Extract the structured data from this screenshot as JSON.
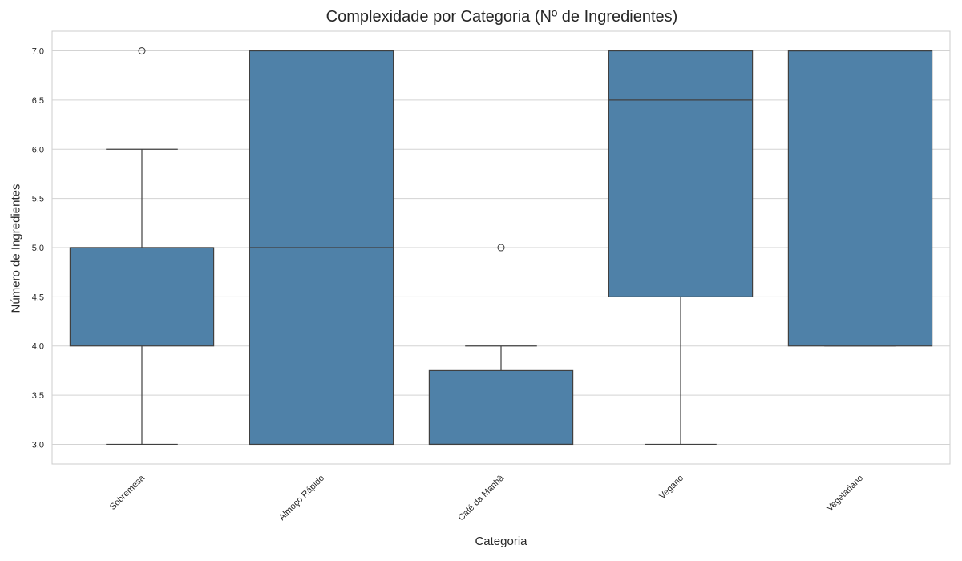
{
  "chart_data": {
    "type": "box",
    "title": "Complexidade por Categoria (Nº de Ingredientes)",
    "xlabel": "Categoria",
    "ylabel": "Número de Ingredientes",
    "ylim": [
      2.8,
      7.2
    ],
    "yticks": [
      "3.0",
      "3.5",
      "4.0",
      "4.5",
      "5.0",
      "5.5",
      "6.0",
      "6.5",
      "7.0"
    ],
    "grid": true,
    "box_color": "#4f81a8",
    "line_color": "#404040",
    "categories": [
      "Sobremesa",
      "Almoço Rápido",
      "Café da Manhã",
      "Vegano",
      "Vegetariano"
    ],
    "boxes": [
      {
        "category": "Sobremesa",
        "whisker_low": 3.0,
        "q1": 4.0,
        "median": 5.0,
        "q3": 5.0,
        "whisker_high": 6.0,
        "outliers": [
          7.0
        ]
      },
      {
        "category": "Almoço Rápido",
        "whisker_low": 3.0,
        "q1": 3.0,
        "median": 5.0,
        "q3": 7.0,
        "whisker_high": 7.0,
        "outliers": []
      },
      {
        "category": "Café da Manhã",
        "whisker_low": 3.0,
        "q1": 3.0,
        "median": 3.0,
        "q3": 3.75,
        "whisker_high": 4.0,
        "outliers": [
          5.0
        ]
      },
      {
        "category": "Vegano",
        "whisker_low": 3.0,
        "q1": 4.5,
        "median": 6.5,
        "q3": 7.0,
        "whisker_high": 7.0,
        "outliers": []
      },
      {
        "category": "Vegetariano",
        "whisker_low": 4.0,
        "q1": 4.0,
        "median": 7.0,
        "q3": 7.0,
        "whisker_high": 7.0,
        "outliers": []
      }
    ]
  }
}
